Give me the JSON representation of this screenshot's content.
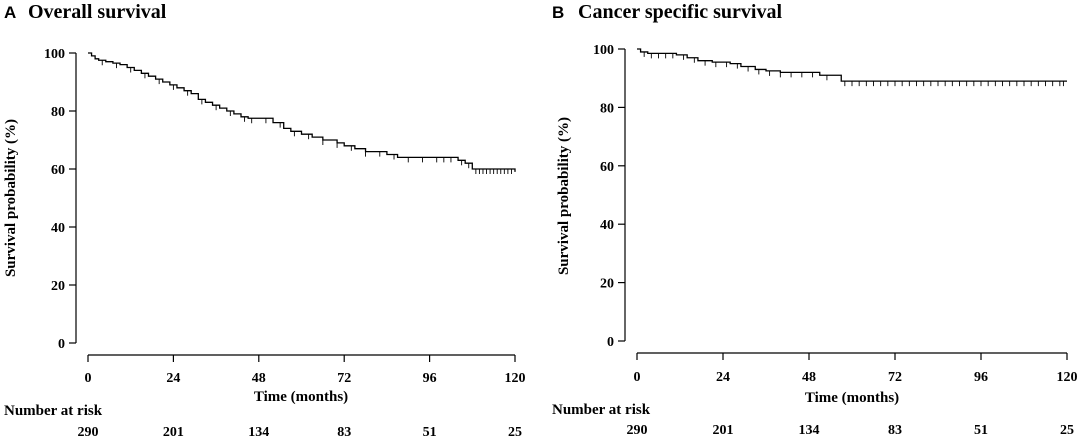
{
  "chart_data": [
    {
      "type": "line",
      "panel_letter": "A",
      "title": "Overall survival",
      "xlabel": "Time (months)",
      "ylabel": "Survival probability (%)",
      "xlim": [
        0,
        120
      ],
      "ylim": [
        0,
        100
      ],
      "x_ticks": [
        0,
        24,
        48,
        72,
        96,
        120
      ],
      "y_ticks": [
        0,
        20,
        40,
        60,
        80,
        100
      ],
      "grid": false,
      "risk_table_label": "Number at risk",
      "number_at_risk": [
        290,
        201,
        134,
        83,
        51,
        25
      ],
      "series": [
        {
          "name": "Overall survival",
          "step_x": [
            0,
            1,
            2,
            3,
            5,
            7,
            9,
            11,
            13,
            15,
            17,
            19,
            21,
            23,
            25,
            27,
            29,
            31,
            33,
            35,
            37,
            39,
            41,
            43,
            45,
            52,
            55,
            57,
            60,
            63,
            66,
            70,
            72,
            75,
            78,
            84,
            87,
            104,
            106,
            108,
            120
          ],
          "step_y": [
            100,
            99,
            98,
            97.5,
            97,
            96.5,
            96,
            95,
            94,
            93,
            92,
            91,
            90,
            89,
            88,
            87,
            86,
            84,
            83,
            82,
            81,
            80,
            79,
            78,
            77.5,
            76,
            74,
            73,
            72,
            71,
            70,
            69,
            68,
            67,
            66,
            65,
            64,
            63,
            62,
            60,
            59
          ],
          "censor_x": [
            4,
            8,
            12,
            16,
            20,
            24,
            28,
            32,
            36,
            40,
            44,
            46,
            50,
            54,
            58,
            62,
            66,
            70,
            74,
            78,
            82,
            86,
            90,
            94,
            98,
            100,
            102,
            105,
            107,
            109,
            110,
            111,
            112,
            113,
            114,
            115,
            116,
            117,
            118,
            119
          ]
        }
      ]
    },
    {
      "type": "line",
      "panel_letter": "B",
      "title": "Cancer specific survival",
      "xlabel": "Time (months)",
      "ylabel": "Survival probability (%)",
      "xlim": [
        0,
        120
      ],
      "ylim": [
        0,
        100
      ],
      "x_ticks": [
        0,
        24,
        48,
        72,
        96,
        120
      ],
      "y_ticks": [
        0,
        20,
        40,
        60,
        80,
        100
      ],
      "grid": false,
      "risk_table_label": "Number at risk",
      "number_at_risk": [
        290,
        201,
        134,
        83,
        51,
        25
      ],
      "series": [
        {
          "name": "Cancer specific survival",
          "step_x": [
            0,
            1,
            3,
            11,
            14,
            17,
            21,
            26,
            29,
            33,
            36,
            40,
            51,
            57,
            120
          ],
          "step_y": [
            100,
            99,
            98.5,
            98,
            97,
            96,
            95.5,
            95,
            94,
            93,
            92.5,
            92,
            91,
            89,
            89
          ],
          "censor_x": [
            2,
            4,
            6,
            8,
            10,
            13,
            16,
            19,
            22,
            25,
            28,
            31,
            34,
            37,
            40,
            43,
            46,
            49,
            53,
            58,
            60,
            62,
            64,
            66,
            68,
            70,
            72,
            74,
            76,
            78,
            80,
            82,
            84,
            86,
            88,
            90,
            92,
            94,
            96,
            98,
            100,
            102,
            104,
            106,
            108,
            110,
            112,
            114,
            116,
            118,
            119
          ]
        }
      ]
    }
  ]
}
